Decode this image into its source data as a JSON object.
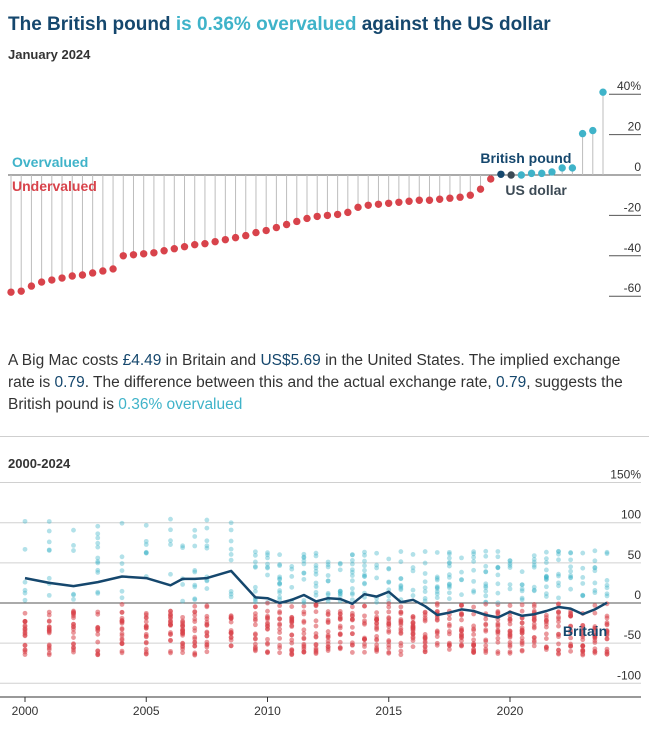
{
  "header": {
    "title_pre": "The British pound",
    "title_hl": "is 0.36% overvalued",
    "title_post": "against the US dollar",
    "subtitle": "January 2024"
  },
  "description": {
    "p1": "A Big Mac costs ",
    "price_local": "£4.49",
    "p2": " in Britain and ",
    "price_us": "US$5.69",
    "p3": " in the United States. The implied exchange rate is ",
    "implied_rate": "0.79",
    "p4": ". The difference between this and the actual exchange rate, ",
    "actual_rate": "0.79",
    "p5": ", suggests the British pound is ",
    "verdict": "0.36% overvalued"
  },
  "colors": {
    "over": "#3fb3c9",
    "under": "#d8434b",
    "highlight": "#15476d",
    "usd": "#3c4a55",
    "stem": "#bdbdbd"
  },
  "chart_data": [
    {
      "type": "lollipop",
      "subtitle": "January 2024",
      "labels": {
        "over": "Overvalued",
        "under": "Undervalued",
        "highlight": "British pound",
        "base": "US dollar"
      },
      "yticks": [
        "40%",
        "20",
        "0",
        "-20",
        "-40",
        "-60"
      ],
      "ytick_values": [
        40,
        20,
        0,
        -20,
        -40,
        -60
      ],
      "ylim": [
        -66,
        46
      ],
      "grid": false,
      "values": [
        -58,
        -57.5,
        -55,
        -53,
        -52,
        -51,
        -50,
        -49.5,
        -48.5,
        -47.5,
        -46.5,
        -40,
        -39.5,
        -39,
        -38.5,
        -37.5,
        -36.5,
        -35.5,
        -34.5,
        -34,
        -33,
        -32,
        -31,
        -30,
        -28.5,
        -27.5,
        -26,
        -24.5,
        -23,
        -21.5,
        -20.5,
        -20,
        -19.5,
        -18.5,
        -16,
        -15,
        -14.5,
        -14,
        -13.5,
        -13,
        -12.5,
        -12.5,
        -12,
        -11.5,
        -11,
        -10,
        -7,
        -2,
        0.36,
        0,
        0,
        0.8,
        0.8,
        1.5,
        3.5,
        3.5,
        20.5,
        22,
        41
      ],
      "highlight_index": 48,
      "base_index": 49
    },
    {
      "type": "scatter",
      "subtitle": "2000-2024",
      "series_highlight": "Britain",
      "xticks": [
        "2000",
        "2005",
        "2010",
        "2015",
        "2020"
      ],
      "xtick_values": [
        2000,
        2005,
        2010,
        2015,
        2020
      ],
      "yticks": [
        "150%",
        "100",
        "50",
        "0",
        "-50",
        "-100"
      ],
      "ytick_values": [
        150,
        100,
        50,
        0,
        -50,
        -100
      ],
      "xlim": [
        1999.6,
        2024.6
      ],
      "ylim": [
        -105,
        155
      ],
      "britain": {
        "x": [
          2000,
          2001,
          2002,
          2003,
          2004,
          2005,
          2006,
          2006.5,
          2007,
          2007.5,
          2008.5,
          2009.5,
          2010,
          2010.5,
          2011,
          2011.5,
          2012,
          2012.5,
          2013,
          2013.5,
          2014,
          2014.5,
          2015,
          2015.5,
          2016,
          2016.5,
          2017,
          2017.5,
          2018,
          2018.5,
          2019,
          2019.5,
          2020,
          2020.5,
          2021,
          2021.5,
          2022,
          2022.5,
          2023,
          2023.5,
          2024
        ],
        "y": [
          31,
          25,
          21,
          26,
          33,
          31,
          22,
          30,
          30,
          31,
          40,
          7,
          6,
          0,
          4,
          10,
          2,
          6,
          5,
          -1,
          11,
          8,
          14,
          1,
          4,
          -4,
          -15,
          -12,
          -8,
          -10,
          -15,
          -18,
          -11,
          -16,
          -14,
          -10,
          -5,
          -7,
          -14,
          -8,
          0.36
        ]
      }
    }
  ]
}
